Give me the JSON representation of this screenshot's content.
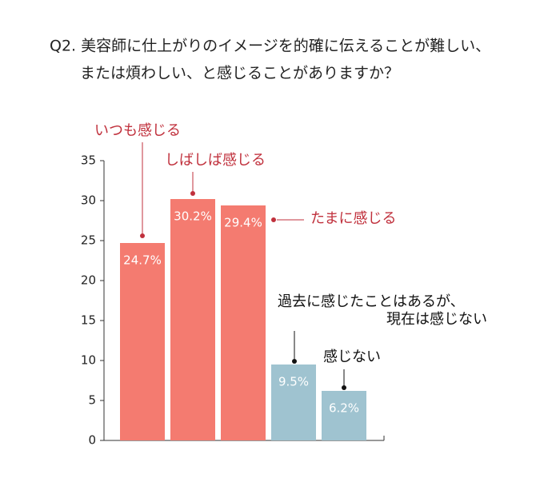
{
  "chart_data": {
    "type": "bar",
    "title": [
      "Q2. 美容師に仕上がりのイメージを的確に伝えることが難しい、",
      "または煩わしい、と感じることがありますか？"
    ],
    "categories": [
      "いつも感じる",
      "しばしば感じる",
      "たまに感じる",
      [
        "過去に感じたことはあるが、",
        "現在は感じない"
      ],
      "感じない"
    ],
    "values": [
      24.7,
      30.2,
      29.4,
      9.5,
      6.2
    ],
    "value_labels": [
      "24.7%",
      "30.2%",
      "29.4%",
      "9.5%",
      "6.2%"
    ],
    "colors": [
      "#f47b70",
      "#f47b70",
      "#f47b70",
      "#9fc3d0",
      "#9fc3d0"
    ],
    "ylim": [
      0,
      35
    ],
    "yticks": [
      0,
      5,
      10,
      15,
      20,
      25,
      30,
      35
    ]
  }
}
